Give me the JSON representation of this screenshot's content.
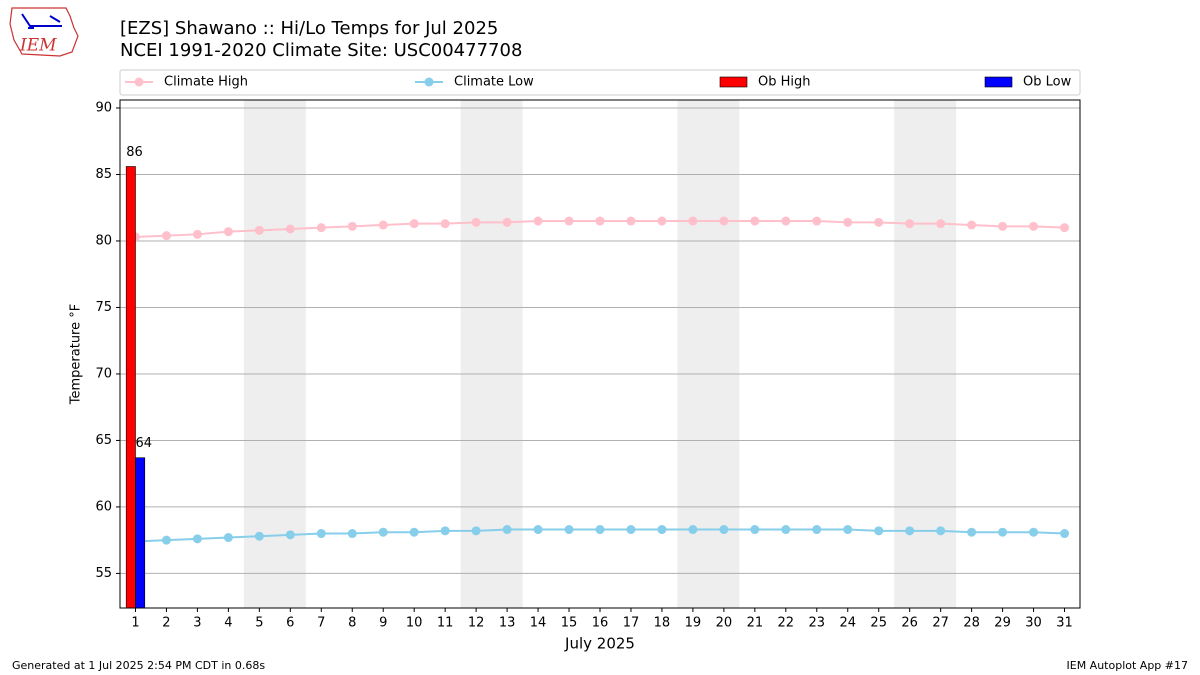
{
  "logo": {
    "text": "IEM"
  },
  "footer": {
    "left": "Generated at 1 Jul 2025 2:54 PM CDT in 0.68s",
    "right": "IEM Autoplot App #17"
  },
  "chart_data": {
    "type": "line",
    "title": "[EZS] Shawano :: Hi/Lo Temps for Jul 2025",
    "subtitle": "NCEI 1991-2020 Climate Site: USC00477708",
    "x_label": "July 2025",
    "y_label": "Temperature °F",
    "x": [
      1,
      2,
      3,
      4,
      5,
      6,
      7,
      8,
      9,
      10,
      11,
      12,
      13,
      14,
      15,
      16,
      17,
      18,
      19,
      20,
      21,
      22,
      23,
      24,
      25,
      26,
      27,
      28,
      29,
      30,
      31
    ],
    "xlim": [
      0.5,
      31.5
    ],
    "xticks": [
      1,
      2,
      3,
      4,
      5,
      6,
      7,
      8,
      9,
      10,
      11,
      12,
      13,
      14,
      15,
      16,
      17,
      18,
      19,
      20,
      21,
      22,
      23,
      24,
      25,
      26,
      27,
      28,
      29,
      30,
      31
    ],
    "ylim": [
      52.4,
      90.6
    ],
    "yticks": [
      55,
      60,
      65,
      70,
      75,
      80,
      85,
      90
    ],
    "grid": true,
    "legend": "top",
    "shaded_ranges": [
      [
        4.5,
        6.5
      ],
      [
        11.5,
        13.5
      ],
      [
        18.5,
        20.5
      ],
      [
        25.5,
        27.5
      ]
    ],
    "series": [
      {
        "name": "Climate High",
        "type": "line",
        "color": "#ffc0cb",
        "values": [
          80.3,
          80.4,
          80.5,
          80.7,
          80.8,
          80.9,
          81.0,
          81.1,
          81.2,
          81.3,
          81.3,
          81.4,
          81.4,
          81.5,
          81.5,
          81.5,
          81.5,
          81.5,
          81.5,
          81.5,
          81.5,
          81.5,
          81.5,
          81.4,
          81.4,
          81.3,
          81.3,
          81.2,
          81.1,
          81.1,
          81.0
        ]
      },
      {
        "name": "Climate Low",
        "type": "line",
        "color": "#87ceeb",
        "values": [
          57.4,
          57.5,
          57.6,
          57.7,
          57.8,
          57.9,
          58.0,
          58.0,
          58.1,
          58.1,
          58.2,
          58.2,
          58.3,
          58.3,
          58.3,
          58.3,
          58.3,
          58.3,
          58.3,
          58.3,
          58.3,
          58.3,
          58.3,
          58.3,
          58.2,
          58.2,
          58.2,
          58.1,
          58.1,
          58.1,
          58.0
        ]
      },
      {
        "name": "Ob High",
        "type": "bar",
        "color": "#ff0000",
        "values": [
          85.6,
          null,
          null,
          null,
          null,
          null,
          null,
          null,
          null,
          null,
          null,
          null,
          null,
          null,
          null,
          null,
          null,
          null,
          null,
          null,
          null,
          null,
          null,
          null,
          null,
          null,
          null,
          null,
          null,
          null,
          null
        ],
        "value_labels": [
          "86",
          null,
          null,
          null,
          null,
          null,
          null,
          null,
          null,
          null,
          null,
          null,
          null,
          null,
          null,
          null,
          null,
          null,
          null,
          null,
          null,
          null,
          null,
          null,
          null,
          null,
          null,
          null,
          null,
          null,
          null
        ]
      },
      {
        "name": "Ob Low",
        "type": "bar",
        "color": "#0000ff",
        "values": [
          63.7,
          null,
          null,
          null,
          null,
          null,
          null,
          null,
          null,
          null,
          null,
          null,
          null,
          null,
          null,
          null,
          null,
          null,
          null,
          null,
          null,
          null,
          null,
          null,
          null,
          null,
          null,
          null,
          null,
          null,
          null
        ],
        "value_labels": [
          "64",
          null,
          null,
          null,
          null,
          null,
          null,
          null,
          null,
          null,
          null,
          null,
          null,
          null,
          null,
          null,
          null,
          null,
          null,
          null,
          null,
          null,
          null,
          null,
          null,
          null,
          null,
          null,
          null,
          null,
          null
        ]
      }
    ]
  }
}
